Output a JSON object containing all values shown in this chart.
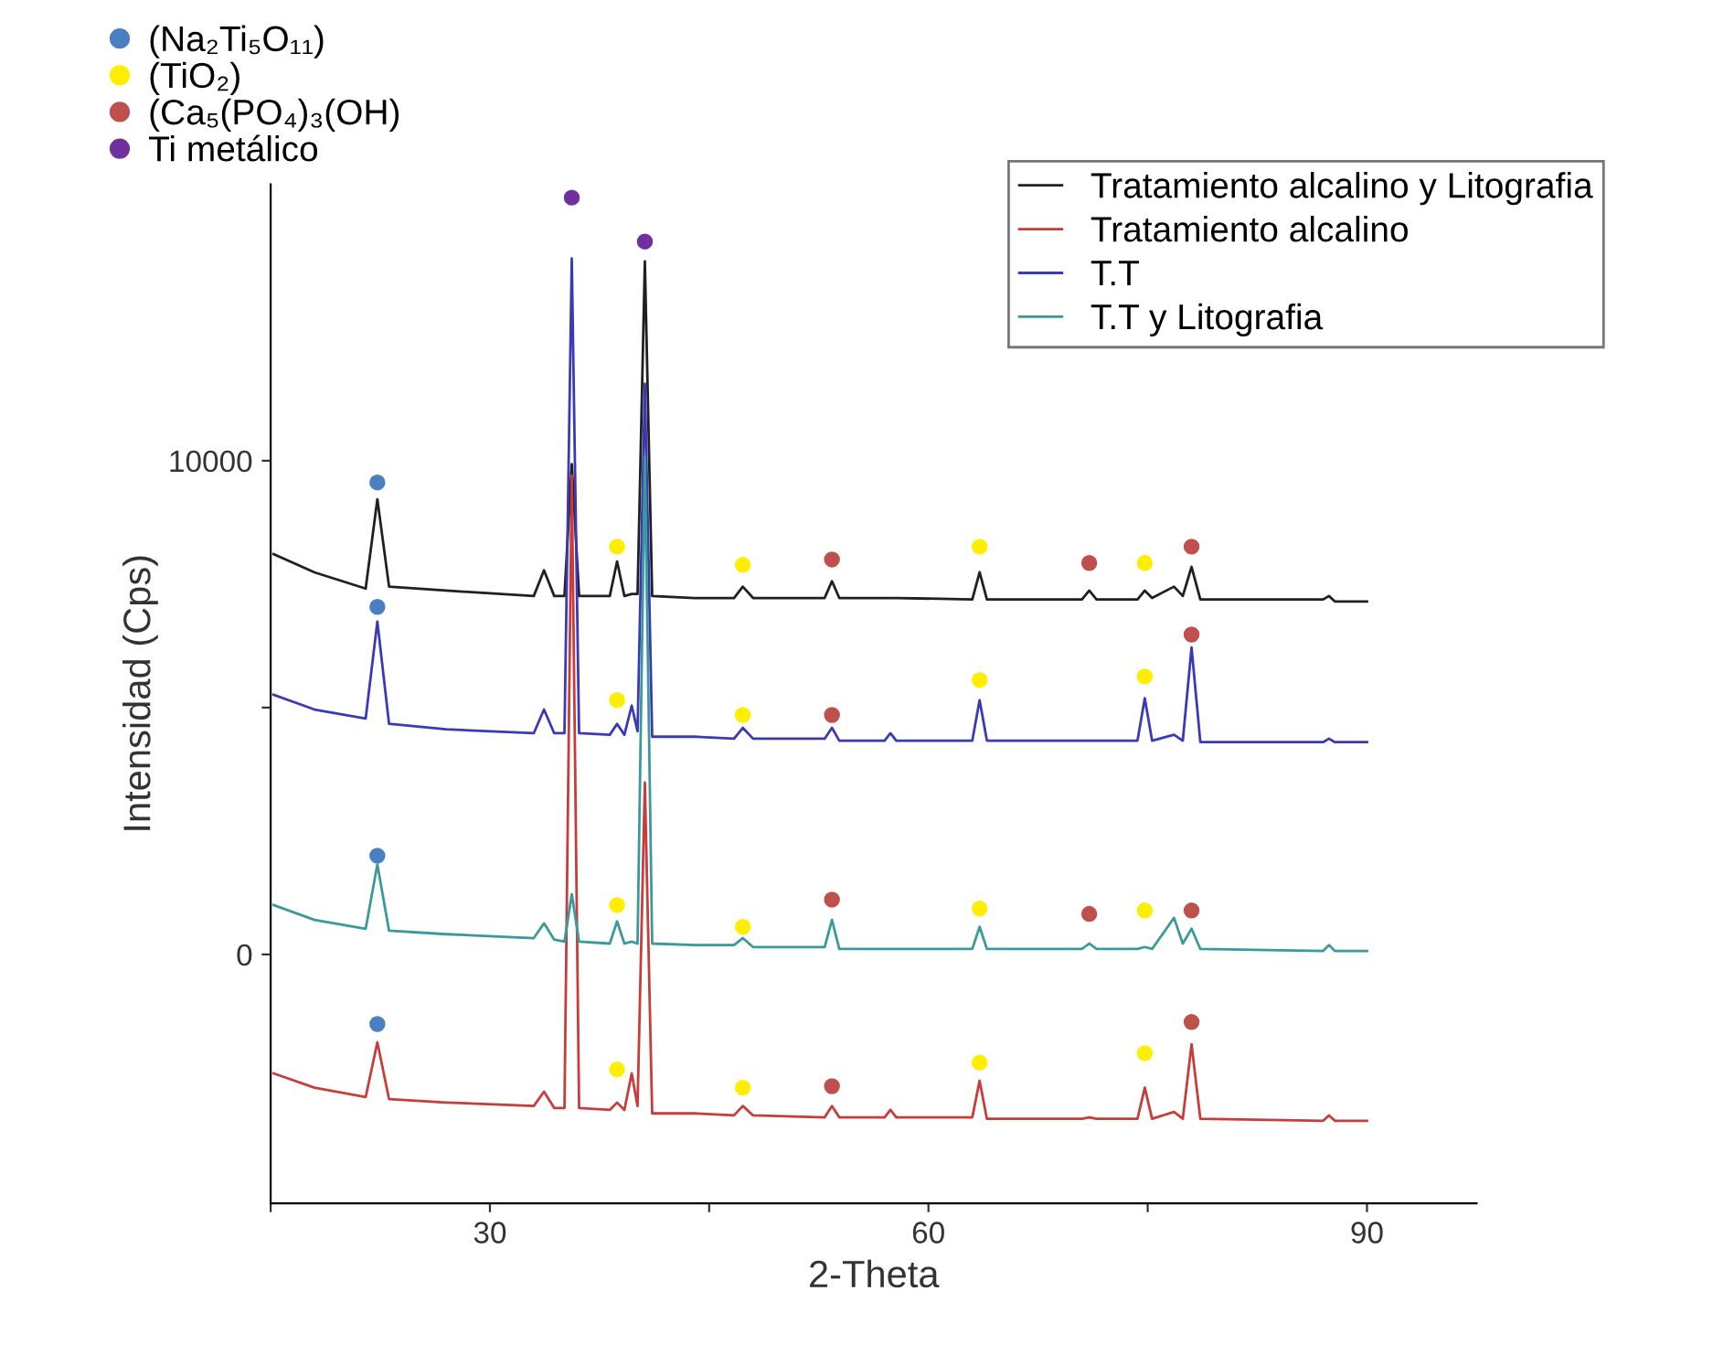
{
  "chart_data": {
    "type": "line",
    "xlabel": "2-Theta",
    "ylabel": "Intensidad (Cps)",
    "xlim": [
      15,
      97.5
    ],
    "ylim": [
      -5040,
      15600
    ],
    "xticks": [
      {
        "value": 15,
        "label": null
      },
      30,
      {
        "value": 45,
        "label": null
      },
      60,
      {
        "value": 75,
        "label": null
      },
      90
    ],
    "yticks": [
      0,
      {
        "value": 5000,
        "label": null
      },
      10000
    ],
    "legend": "top right",
    "grid": false,
    "x": [
      15.2,
      18,
      21.5,
      22.3,
      23.1,
      27,
      33.0,
      33.7,
      34.4,
      35.1,
      35.6,
      36.1,
      38.2,
      38.7,
      39.2,
      39.7,
      40.1,
      40.6,
      41.1,
      44,
      46.7,
      47.3,
      48.0,
      52.9,
      53.4,
      53.9,
      57.0,
      57.4,
      57.8,
      63.0,
      63.5,
      64.0,
      70.5,
      71.0,
      71.5,
      74.3,
      74.8,
      75.3,
      76.8,
      77.4,
      78.0,
      78.6,
      87.0,
      87.4,
      87.8,
      90.0
    ],
    "series": [
      {
        "name": "Tratamiento alcalino y Litografia",
        "color": "#202020",
        "values": [
          8110,
          7740,
          7410,
          9220,
          7450,
          7370,
          7260,
          7780,
          7260,
          7260,
          9930,
          7260,
          7260,
          7960,
          7260,
          7300,
          7300,
          14040,
          7260,
          7220,
          7220,
          7450,
          7220,
          7220,
          7560,
          7220,
          7220,
          7220,
          7220,
          7190,
          7740,
          7190,
          7190,
          7370,
          7190,
          7190,
          7370,
          7220,
          7450,
          7260,
          7850,
          7190,
          7190,
          7260,
          7150,
          7150
        ]
      },
      {
        "name": "Tratamiento alcalino",
        "color": "#c83c3c",
        "values": [
          -2410,
          -2700,
          -2890,
          -1780,
          -2930,
          -3000,
          -3070,
          -2780,
          -3110,
          -3110,
          9700,
          -3110,
          -3150,
          -3000,
          -3150,
          -2410,
          -3070,
          3480,
          -3220,
          -3220,
          -3260,
          -3070,
          -3260,
          -3300,
          -3070,
          -3300,
          -3300,
          -3150,
          -3300,
          -3300,
          -2560,
          -3330,
          -3330,
          -3300,
          -3330,
          -3330,
          -2700,
          -3330,
          -3190,
          -3330,
          -1820,
          -3330,
          -3370,
          -3260,
          -3370,
          -3370
        ]
      },
      {
        "name": "T.T",
        "color": "#3a3ab8",
        "values": [
          5260,
          4960,
          4780,
          6740,
          4670,
          4560,
          4480,
          4960,
          4480,
          4480,
          14100,
          4480,
          4450,
          4670,
          4450,
          5040,
          4520,
          11560,
          4410,
          4410,
          4370,
          4590,
          4370,
          4370,
          4590,
          4330,
          4330,
          4480,
          4330,
          4330,
          5150,
          4330,
          4330,
          4330,
          4330,
          4330,
          5190,
          4330,
          4450,
          4330,
          6220,
          4300,
          4300,
          4370,
          4300,
          4300
        ]
      },
      {
        "name": "T.T y Litografia",
        "color": "#3a9a9a",
        "values": [
          1000,
          700,
          520,
          1820,
          480,
          410,
          330,
          630,
          300,
          260,
          1220,
          260,
          220,
          670,
          220,
          260,
          220,
          10080,
          220,
          190,
          190,
          330,
          150,
          150,
          700,
          110,
          110,
          110,
          110,
          110,
          560,
          110,
          110,
          220,
          110,
          110,
          150,
          110,
          740,
          220,
          520,
          110,
          70,
          190,
          70,
          70
        ]
      },
      {
        "name": "(Na₂Ti₅O₁₁)",
        "type": "scatter",
        "marker": "circle",
        "color": "#4a7fc1",
        "x": [
          22.3,
          22.3,
          22.3,
          22.3
        ],
        "values": [
          9560,
          7040,
          2000,
          -1410
        ]
      },
      {
        "name": "(TiO₂)",
        "type": "scatter",
        "marker": "circle",
        "color": "#ffee00",
        "x": [
          38.7,
          47.3,
          63.5,
          74.8,
          38.7,
          47.3,
          63.5,
          74.8,
          38.7,
          47.3,
          63.5,
          74.8,
          38.7,
          47.3,
          63.5,
          74.8
        ],
        "values": [
          8260,
          7890,
          8260,
          7930,
          5150,
          4850,
          5560,
          5630,
          1000,
          560,
          930,
          890,
          -2330,
          -2700,
          -2190,
          -2000
        ]
      },
      {
        "name": "(Ca₅(PO₄)₃(OH)",
        "type": "scatter",
        "marker": "circle",
        "color": "#c0504d",
        "x": [
          53.4,
          71.0,
          78.0,
          53.4,
          78.0,
          53.4,
          71.0,
          78.0,
          53.4,
          78.0
        ],
        "values": [
          8000,
          7930,
          8260,
          4850,
          6480,
          1110,
          820,
          890,
          -2670,
          -1370
        ]
      },
      {
        "name": "Ti metálico",
        "type": "scatter",
        "marker": "circle",
        "color": "#7030a0",
        "x": [
          35.6,
          40.6
        ],
        "values": [
          15330,
          14440
        ]
      }
    ]
  }
}
